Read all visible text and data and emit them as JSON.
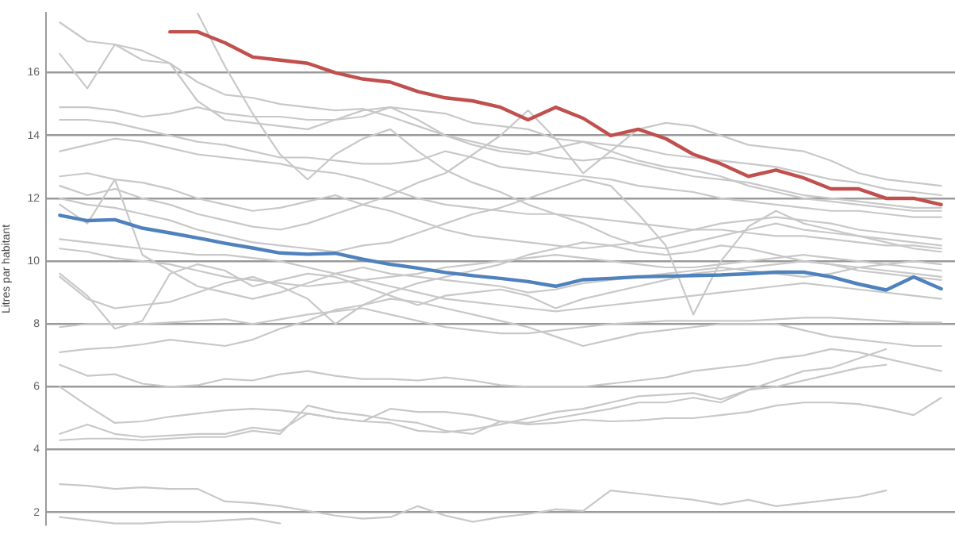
{
  "chart_data": {
    "type": "line",
    "ylabel": "Litres par habitant",
    "categories": [
      null,
      null,
      null,
      null,
      null,
      null,
      null,
      null,
      null,
      null,
      null,
      null,
      null,
      null,
      null,
      null,
      null,
      null,
      null,
      null,
      null,
      null,
      null,
      null,
      null,
      null,
      null,
      null,
      null,
      null,
      null,
      null,
      null
    ],
    "ylim": [
      1.6,
      17.9
    ],
    "yticks": [
      2,
      4,
      6,
      8,
      10,
      12,
      14,
      16
    ],
    "grid": "y",
    "tick_labels": "y",
    "series": [
      {
        "color": "#c0504d",
        "values": [
          null,
          null,
          null,
          null,
          17.3,
          17.3,
          16.95,
          16.5,
          16.4,
          16.3,
          16.0,
          15.8,
          15.7,
          15.4,
          15.2,
          15.1,
          14.9,
          14.5,
          14.9,
          14.55,
          14.0,
          14.2,
          13.9,
          13.4,
          13.1,
          12.7,
          12.9,
          12.65,
          12.3,
          12.3,
          12.0,
          12.0,
          11.8
        ]
      },
      {
        "color": "#4f81bd",
        "values": [
          11.46,
          11.29,
          11.32,
          11.05,
          10.9,
          10.74,
          10.57,
          10.42,
          10.26,
          10.22,
          10.25,
          10.06,
          9.9,
          9.78,
          9.64,
          9.54,
          9.45,
          9.35,
          9.2,
          9.41,
          9.45,
          9.5,
          9.52,
          9.54,
          9.56,
          9.6,
          9.65,
          9.65,
          9.5,
          9.27,
          9.08,
          9.5,
          9.12
        ]
      },
      {
        "color": "#c8c8c8",
        "values": [
          2.9,
          2.85,
          2.75,
          2.8,
          2.75,
          2.75,
          2.35,
          2.3,
          2.2,
          2.05,
          1.9,
          1.8,
          1.85,
          2.2,
          1.9,
          1.7,
          1.85,
          1.95,
          2.1,
          2.05,
          2.7,
          2.6,
          2.5,
          2.4,
          2.25,
          2.4,
          2.2,
          2.3,
          2.4,
          2.5,
          2.7,
          null,
          null
        ]
      },
      {
        "color": "#c8c8c8",
        "values": [
          1.85,
          1.75,
          1.65,
          1.65,
          1.7,
          1.7,
          1.75,
          1.8,
          1.65,
          null,
          null,
          null,
          null,
          null,
          null,
          null,
          null,
          null,
          null,
          null,
          null,
          null,
          null,
          null,
          null,
          null,
          null,
          null,
          null,
          null,
          null,
          null,
          null
        ]
      },
      {
        "color": "#c8c8c8",
        "values": [
          4.3,
          4.35,
          4.35,
          4.3,
          4.35,
          4.4,
          4.4,
          4.6,
          4.5,
          5.4,
          5.2,
          5.1,
          4.95,
          4.85,
          4.6,
          4.5,
          4.9,
          4.85,
          5.0,
          5.15,
          5.3,
          5.5,
          5.5,
          5.65,
          5.5,
          5.9,
          6.2,
          6.5,
          6.6,
          6.9,
          7.2,
          null,
          null
        ]
      },
      {
        "color": "#c8c8c8",
        "values": [
          4.5,
          4.8,
          4.5,
          4.4,
          4.45,
          4.5,
          4.5,
          4.7,
          4.6,
          5.15,
          5.0,
          4.9,
          5.3,
          5.2,
          5.2,
          5.1,
          4.9,
          4.8,
          4.85,
          4.95,
          4.9,
          4.93,
          5.0,
          5.0,
          5.1,
          5.2,
          5.4,
          5.5,
          5.5,
          5.45,
          5.3,
          5.1,
          5.65
        ]
      },
      {
        "color": "#c8c8c8",
        "values": [
          6.0,
          5.4,
          4.85,
          4.9,
          5.05,
          5.15,
          5.25,
          5.3,
          5.25,
          5.15,
          5.0,
          4.9,
          4.85,
          4.6,
          4.55,
          4.65,
          4.8,
          5.0,
          5.2,
          5.3,
          5.5,
          5.7,
          5.75,
          5.8,
          5.6,
          5.9,
          6.0,
          6.2,
          6.4,
          6.6,
          6.7,
          null,
          null
        ]
      },
      {
        "color": "#c8c8c8",
        "values": [
          6.7,
          6.35,
          6.4,
          6.1,
          6.0,
          6.05,
          6.25,
          6.2,
          6.4,
          6.5,
          6.35,
          6.25,
          6.25,
          6.2,
          6.3,
          6.2,
          6.05,
          6.0,
          6.0,
          6.0,
          6.1,
          6.2,
          6.3,
          6.5,
          6.6,
          6.7,
          6.9,
          7.0,
          7.2,
          7.1,
          6.9,
          6.7,
          6.5
        ]
      },
      {
        "color": "#c8c8c8",
        "values": [
          7.1,
          7.2,
          7.25,
          7.35,
          7.5,
          7.4,
          7.3,
          7.5,
          7.85,
          8.1,
          8.45,
          8.6,
          8.8,
          8.7,
          8.5,
          8.3,
          8.1,
          7.9,
          7.6,
          7.3,
          7.5,
          7.7,
          7.8,
          7.9,
          8.0,
          8.0,
          8.0,
          7.8,
          7.6,
          7.5,
          7.4,
          7.3,
          7.3
        ]
      },
      {
        "color": "#c8c8c8",
        "values": [
          7.9,
          8.0,
          8.0,
          8.0,
          8.05,
          8.1,
          8.15,
          8.0,
          8.15,
          8.3,
          8.4,
          8.5,
          8.3,
          8.1,
          7.9,
          7.8,
          7.7,
          7.7,
          7.8,
          7.9,
          8.0,
          8.05,
          8.1,
          8.1,
          8.1,
          8.1,
          8.15,
          8.2,
          8.2,
          8.15,
          8.1,
          8.05,
          8.05
        ]
      },
      {
        "color": "#c8c8c8",
        "values": [
          9.6,
          8.9,
          7.85,
          8.1,
          9.6,
          9.9,
          9.7,
          9.2,
          9.4,
          9.6,
          9.5,
          9.2,
          8.9,
          8.6,
          8.9,
          9.0,
          9.1,
          8.9,
          8.5,
          8.8,
          9.0,
          9.2,
          9.4,
          9.6,
          9.7,
          9.8,
          9.9,
          10.0,
          9.9,
          9.8,
          9.7,
          9.6,
          9.5
        ]
      },
      {
        "color": "#c8c8c8",
        "values": [
          11.8,
          11.2,
          12.6,
          10.2,
          9.7,
          9.2,
          9.0,
          8.8,
          9.0,
          9.3,
          9.6,
          9.8,
          9.6,
          9.5,
          9.4,
          9.3,
          9.2,
          9.0,
          9.1,
          9.3,
          9.4,
          9.5,
          9.6,
          9.7,
          9.8,
          9.7,
          9.6,
          9.5,
          9.6,
          9.8,
          9.9,
          10.0,
          9.9
        ]
      },
      {
        "color": "#c8c8c8",
        "values": [
          9.5,
          8.8,
          8.5,
          8.6,
          8.7,
          9.0,
          9.3,
          9.5,
          9.2,
          8.8,
          8.0,
          8.6,
          9.0,
          9.3,
          9.5,
          9.7,
          9.9,
          10.2,
          10.4,
          10.6,
          10.5,
          10.3,
          10.2,
          10.3,
          10.5,
          10.4,
          10.2,
          10.0,
          9.9,
          9.7,
          9.6,
          9.5,
          9.4
        ]
      },
      {
        "color": "#c8c8c8",
        "values": [
          null,
          null,
          null,
          null,
          null,
          17.9,
          16.2,
          14.7,
          13.4,
          12.6,
          13.4,
          13.9,
          14.2,
          13.5,
          12.9,
          12.5,
          12.2,
          11.8,
          11.5,
          11.2,
          10.8,
          10.5,
          10.4,
          10.6,
          10.8,
          11.0,
          11.2,
          11.0,
          10.9,
          10.8,
          10.7,
          10.6,
          10.5
        ]
      },
      {
        "color": "#c8c8c8",
        "values": [
          17.6,
          17.0,
          16.9,
          16.7,
          16.3,
          15.7,
          15.3,
          15.2,
          15.0,
          14.9,
          14.8,
          14.85,
          14.6,
          14.3,
          14.0,
          13.8,
          13.6,
          13.5,
          13.3,
          13.2,
          13.3,
          13.1,
          12.9,
          12.7,
          12.6,
          12.5,
          12.3,
          12.1,
          12.0,
          11.9,
          11.8,
          11.7,
          11.7
        ]
      },
      {
        "color": "#c8c8c8",
        "values": [
          16.6,
          15.5,
          16.9,
          16.4,
          16.3,
          15.1,
          14.5,
          14.4,
          14.3,
          14.2,
          14.5,
          14.8,
          14.9,
          14.5,
          14.0,
          13.7,
          13.5,
          13.4,
          13.6,
          13.8,
          13.5,
          13.2,
          13.0,
          12.9,
          12.7,
          12.4,
          12.2,
          12.0,
          11.9,
          11.8,
          11.7,
          11.6,
          11.6
        ]
      },
      {
        "color": "#c8c8c8",
        "values": [
          14.9,
          14.9,
          14.8,
          14.6,
          14.7,
          14.9,
          14.7,
          14.6,
          14.6,
          14.5,
          14.5,
          14.6,
          14.9,
          14.8,
          14.7,
          14.4,
          14.3,
          14.2,
          13.9,
          13.8,
          13.7,
          13.6,
          13.4,
          13.3,
          13.2,
          13.1,
          13.0,
          12.8,
          12.6,
          12.5,
          12.3,
          12.2,
          12.1
        ]
      },
      {
        "color": "#c8c8c8",
        "values": [
          14.5,
          14.5,
          14.4,
          14.2,
          14.0,
          13.8,
          13.7,
          13.5,
          13.3,
          13.3,
          13.2,
          13.1,
          13.1,
          13.2,
          13.5,
          13.3,
          13.0,
          12.9,
          12.8,
          12.7,
          12.6,
          12.4,
          12.3,
          12.2,
          12.0,
          11.9,
          11.8,
          11.7,
          11.6,
          11.6,
          11.5,
          11.4,
          11.4
        ]
      },
      {
        "color": "#c8c8c8",
        "values": [
          13.5,
          13.7,
          13.9,
          13.8,
          13.6,
          13.4,
          13.3,
          13.2,
          13.1,
          12.9,
          12.8,
          12.6,
          12.3,
          12.0,
          11.8,
          11.7,
          11.6,
          11.5,
          11.5,
          11.4,
          11.3,
          11.2,
          11.1,
          11.0,
          11.0,
          10.9,
          10.8,
          10.8,
          10.7,
          10.6,
          10.5,
          10.5,
          10.4
        ]
      },
      {
        "color": "#c8c8c8",
        "values": [
          12.7,
          12.8,
          12.6,
          12.5,
          12.3,
          12.0,
          11.8,
          11.6,
          11.7,
          11.9,
          12.1,
          11.8,
          11.6,
          11.3,
          11.0,
          10.8,
          10.7,
          10.6,
          10.5,
          10.4,
          10.5,
          10.6,
          10.8,
          11.0,
          11.2,
          11.3,
          11.4,
          11.3,
          11.2,
          11.0,
          10.9,
          10.8,
          10.7
        ]
      },
      {
        "color": "#c8c8c8",
        "values": [
          10.7,
          10.6,
          10.5,
          10.4,
          10.3,
          10.2,
          10.2,
          10.1,
          10.0,
          9.8,
          9.6,
          9.4,
          9.2,
          9.0,
          8.8,
          8.7,
          8.6,
          8.5,
          8.4,
          8.5,
          8.6,
          8.7,
          8.8,
          8.9,
          9.0,
          9.1,
          9.2,
          9.3,
          9.2,
          9.1,
          9.0,
          8.9,
          8.8
        ]
      },
      {
        "color": "#c8c8c8",
        "values": [
          10.4,
          10.3,
          10.1,
          10.0,
          9.9,
          9.7,
          9.5,
          9.4,
          9.3,
          9.2,
          9.3,
          9.4,
          9.5,
          9.6,
          9.8,
          9.9,
          10.0,
          10.1,
          10.2,
          10.1,
          10.0,
          9.9,
          9.8,
          9.8,
          9.9,
          10.0,
          10.1,
          10.2,
          10.1,
          10.0,
          9.9,
          9.8,
          9.7
        ]
      },
      {
        "color": "#c8c8c8",
        "values": [
          12.0,
          11.8,
          11.7,
          11.5,
          11.3,
          11.0,
          10.8,
          10.6,
          10.5,
          10.4,
          10.3,
          10.5,
          10.6,
          10.9,
          11.2,
          11.5,
          11.7,
          12.0,
          12.3,
          12.6,
          12.4,
          11.5,
          10.5,
          8.3,
          10.0,
          11.1,
          11.6,
          11.2,
          11.0,
          10.8,
          10.6,
          10.4,
          10.3
        ]
      },
      {
        "color": "#c8c8c8",
        "values": [
          12.4,
          12.1,
          12.3,
          12.0,
          11.8,
          11.5,
          11.3,
          11.1,
          11.0,
          11.2,
          11.5,
          11.8,
          12.1,
          12.5,
          12.8,
          13.4,
          14.0,
          14.8,
          13.9,
          12.8,
          13.5,
          14.2,
          14.4,
          14.3,
          14.0,
          13.7,
          13.6,
          13.5,
          13.2,
          12.8,
          12.6,
          12.5,
          12.4
        ]
      }
    ]
  }
}
